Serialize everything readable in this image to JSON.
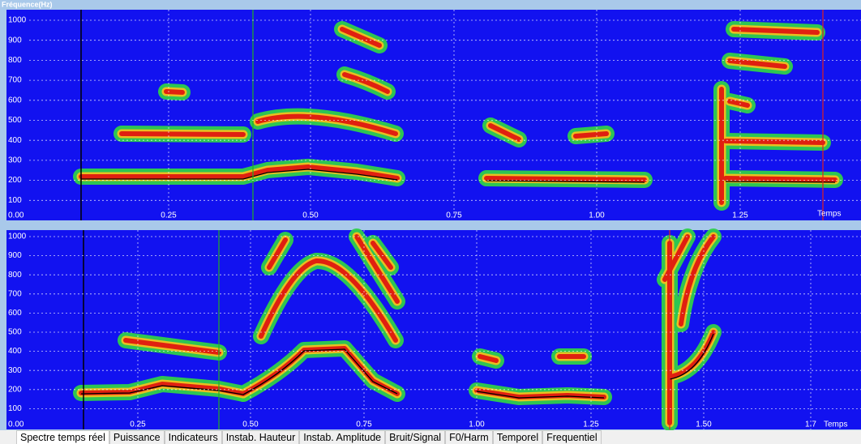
{
  "title_label": "Fréquence(Hz)",
  "panels": [
    {
      "y_labels": [
        "1000",
        "900",
        "800",
        "700",
        "600",
        "500",
        "400",
        "300",
        "200",
        "100"
      ],
      "origin_label": "0.00",
      "x_labels": [
        "0.25",
        "0.50",
        "0.75",
        "1.00",
        "1.25"
      ],
      "axis_label": "Temps"
    },
    {
      "y_labels": [
        "1000",
        "900",
        "800",
        "700",
        "600",
        "500",
        "400",
        "300",
        "200",
        "100"
      ],
      "origin_label": "0.00",
      "x_labels": [
        "0.25",
        "0.50",
        "0.75",
        "1.00",
        "1.25",
        "1.50",
        "1.7"
      ],
      "axis_label": "Temps"
    }
  ],
  "tabs": [
    "Spectre temps réel",
    "Puissance",
    "Indicateurs",
    "Instab. Hauteur",
    "Instab. Amplitude",
    "Bruit/Signal",
    "F0/Harm",
    "Temporel",
    "Frequentiel"
  ]
}
